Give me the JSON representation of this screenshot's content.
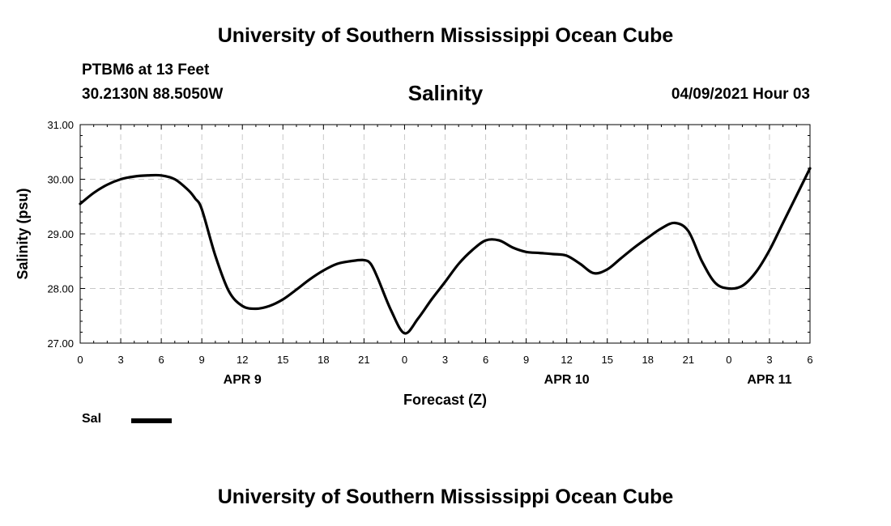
{
  "header": {
    "title_top": "University of Southern Mississippi Ocean Cube",
    "station": "PTBM6 at 13 Feet",
    "coords": "30.2130N  88.5050W",
    "timestamp": "04/09/2021 Hour 03",
    "title_bottom": "University of Southern Mississippi Ocean Cube"
  },
  "chart_data": {
    "type": "line",
    "title": "Salinity",
    "xlabel": "Forecast (Z)",
    "ylabel": "Salinity (psu)",
    "ylim": [
      27.0,
      31.0
    ],
    "yticks": [
      "27.00",
      "28.00",
      "29.00",
      "30.00",
      "31.00"
    ],
    "x_hour_offsets": [
      0,
      3,
      6,
      9,
      12,
      15,
      18,
      21,
      24,
      27,
      30,
      33,
      36,
      39,
      42,
      45,
      48,
      51,
      54
    ],
    "xtick_labels": [
      "0",
      "3",
      "6",
      "9",
      "12",
      "15",
      "18",
      "21",
      "0",
      "3",
      "6",
      "9",
      "12",
      "15",
      "18",
      "21",
      "0",
      "3",
      "6"
    ],
    "date_labels": [
      {
        "label": "APR 9",
        "at_hour": 12
      },
      {
        "label": "APR 10",
        "at_hour": 36
      },
      {
        "label": "APR 11",
        "at_hour": 51
      }
    ],
    "grid": true,
    "legend": "bottom-left",
    "series": [
      {
        "name": "Sal",
        "color": "#000000",
        "x": [
          0,
          1,
          2,
          3,
          4,
          5,
          6,
          7,
          8,
          8.5,
          9,
          10,
          11,
          12,
          13,
          14,
          15,
          16,
          17,
          18,
          19,
          20,
          21,
          21.5,
          22,
          23,
          24,
          25,
          26,
          27,
          28,
          29,
          30,
          31,
          32,
          33,
          34,
          35,
          36,
          37,
          38,
          39,
          40,
          41,
          42,
          43,
          44,
          45,
          46,
          47,
          48,
          49,
          50,
          51,
          52,
          53,
          54
        ],
        "y": [
          29.55,
          29.75,
          29.9,
          30.0,
          30.05,
          30.07,
          30.07,
          30.0,
          29.8,
          29.65,
          29.45,
          28.6,
          27.95,
          27.68,
          27.63,
          27.68,
          27.8,
          27.98,
          28.17,
          28.33,
          28.45,
          28.5,
          28.52,
          28.45,
          28.2,
          27.6,
          27.18,
          27.45,
          27.8,
          28.12,
          28.45,
          28.7,
          28.88,
          28.88,
          28.75,
          28.67,
          28.65,
          28.63,
          28.6,
          28.45,
          28.28,
          28.35,
          28.55,
          28.75,
          28.93,
          29.1,
          29.2,
          29.05,
          28.5,
          28.1,
          28.0,
          28.05,
          28.3,
          28.7,
          29.2,
          29.7,
          30.2
        ]
      }
    ]
  }
}
